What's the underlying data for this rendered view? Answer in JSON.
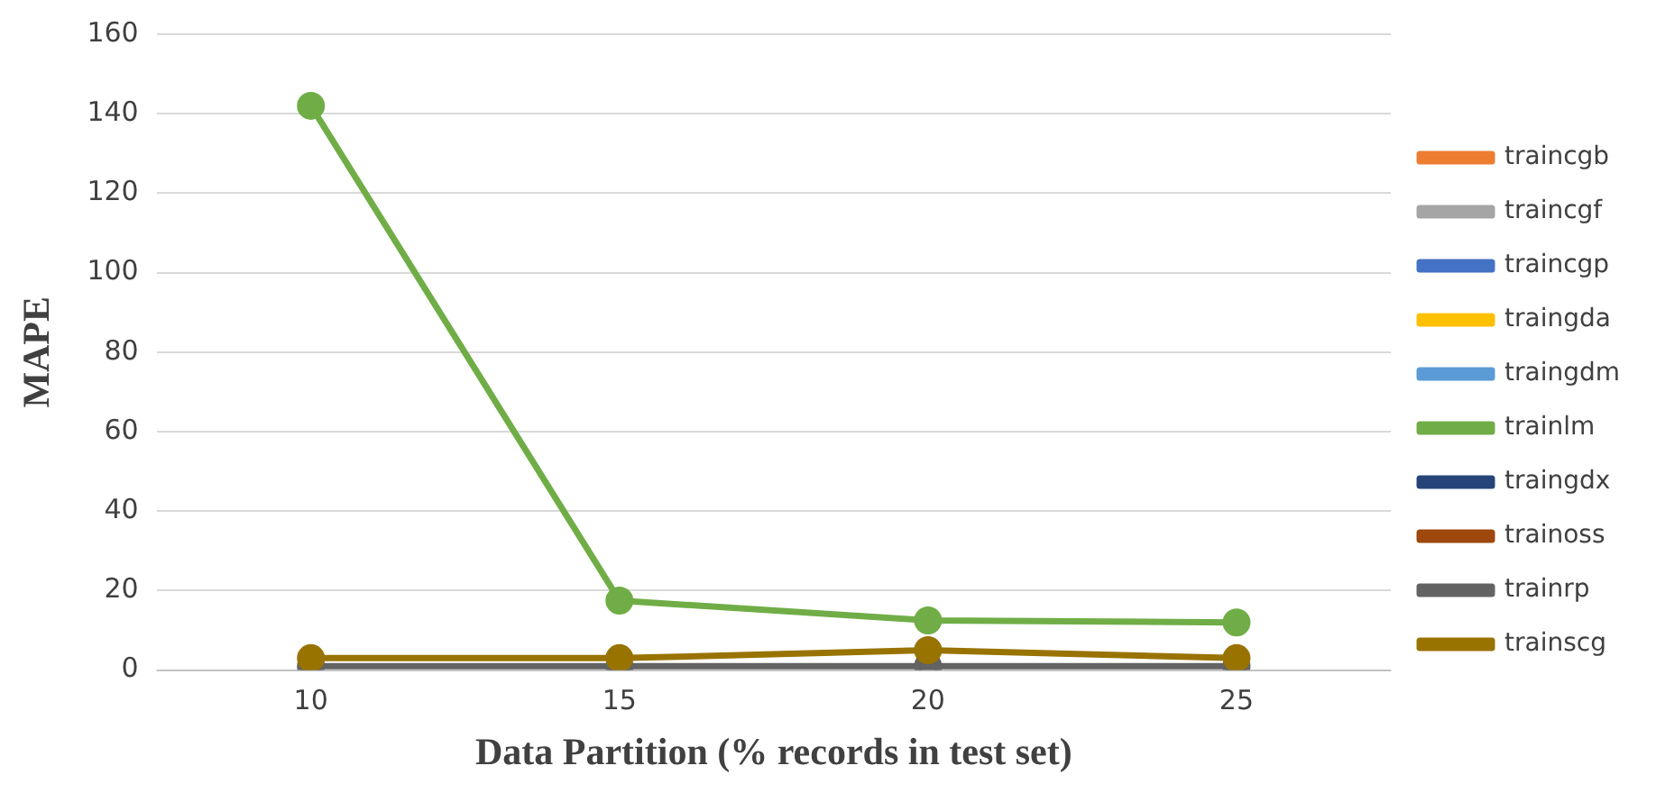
{
  "chart_data": {
    "type": "line",
    "xlabel": "Data Partition (% records in test set)",
    "ylabel": "MAPE",
    "categories": [
      "10",
      "15",
      "20",
      "25"
    ],
    "ylim": [
      0,
      160
    ],
    "yticks": [
      0,
      20,
      40,
      60,
      80,
      100,
      120,
      140,
      160
    ],
    "grid": "y",
    "legend": "right",
    "marker": "circle",
    "line_style": "solid",
    "series": [
      {
        "name": "traincgb",
        "color": "#ed7d31",
        "values": [
          null,
          null,
          null,
          null
        ]
      },
      {
        "name": "traincgf",
        "color": "#a5a5a5",
        "values": [
          null,
          null,
          null,
          null
        ]
      },
      {
        "name": "traincgp",
        "color": "#4472c4",
        "values": [
          null,
          null,
          null,
          null
        ]
      },
      {
        "name": "traingda",
        "color": "#ffc000",
        "values": [
          null,
          null,
          null,
          null
        ]
      },
      {
        "name": "traingdm",
        "color": "#5b9bd5",
        "values": [
          null,
          null,
          null,
          null
        ]
      },
      {
        "name": "trainlm",
        "color": "#70ad47",
        "values": [
          142,
          17.5,
          12.5,
          12
        ]
      },
      {
        "name": "traingdx",
        "color": "#264478",
        "values": [
          null,
          null,
          null,
          null
        ]
      },
      {
        "name": "trainoss",
        "color": "#9e480e",
        "values": [
          null,
          null,
          null,
          null
        ]
      },
      {
        "name": "trainrp",
        "color": "#636363",
        "values": [
          1,
          1,
          1,
          1
        ]
      },
      {
        "name": "trainscg",
        "color": "#997300",
        "values": [
          3,
          3,
          5,
          3
        ]
      }
    ]
  }
}
